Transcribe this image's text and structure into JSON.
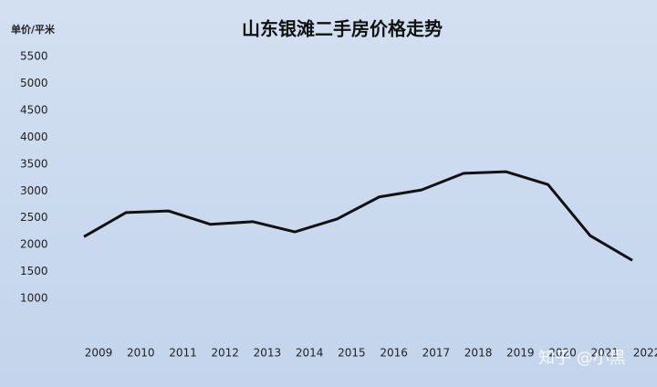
{
  "chart_data": {
    "type": "line",
    "title": "山东银滩二手房价格走势",
    "y_label": "单价/平米",
    "categories": [
      "2009",
      "2010",
      "2011",
      "2012",
      "2013",
      "2014",
      "2015",
      "2016",
      "2017",
      "2018",
      "2019",
      "2020",
      "2021",
      "2022"
    ],
    "values": [
      2150,
      2600,
      2630,
      2380,
      2430,
      2240,
      2480,
      2890,
      3020,
      3330,
      3360,
      3120,
      2170,
      1710
    ],
    "color": "#111111",
    "ylim": [
      0,
      5500
    ],
    "yticks": [
      1000,
      1500,
      2000,
      2500,
      3000,
      3500,
      4000,
      4500,
      5000,
      5500
    ],
    "grid": false,
    "watermark": "知乎 @小黑"
  }
}
